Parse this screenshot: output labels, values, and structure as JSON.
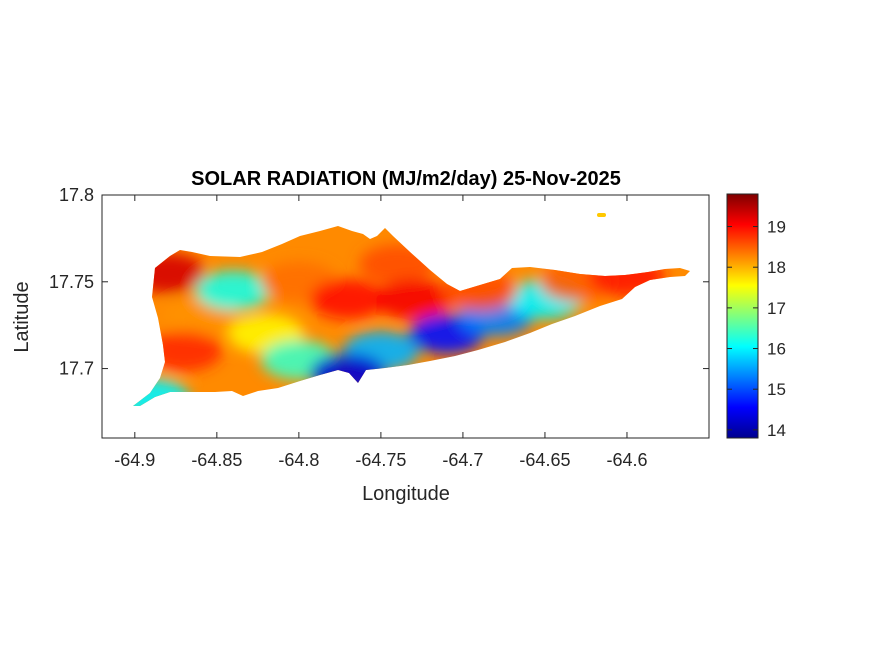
{
  "chart_data": {
    "type": "heatmap",
    "title": "SOLAR RADIATION (MJ/m2/day) 25-Nov-2025",
    "xlabel": "Longitude",
    "ylabel": "Latitude",
    "xlim": [
      -64.92,
      -64.55
    ],
    "ylim": [
      17.66,
      17.8
    ],
    "x_ticks": [
      -64.9,
      -64.85,
      -64.8,
      -64.75,
      -64.7,
      -64.65,
      -64.6
    ],
    "x_tick_labels": [
      "-64.9",
      "-64.85",
      "-64.8",
      "-64.75",
      "-64.7",
      "-64.65",
      "-64.6"
    ],
    "y_ticks": [
      17.7,
      17.75,
      17.8
    ],
    "y_tick_labels": [
      "17.7",
      "17.75",
      "17.8"
    ],
    "colorbar": {
      "colormap": "jet",
      "range": [
        13.8,
        19.8
      ],
      "ticks": [
        14,
        15,
        16,
        17,
        18,
        19
      ],
      "tick_labels": [
        "14",
        "15",
        "16",
        "17",
        "18",
        "19"
      ]
    },
    "regions": [
      {
        "lon": -64.88,
        "lat": 17.755,
        "value": 19.3
      },
      {
        "lon": -64.86,
        "lat": 17.73,
        "value": 18.2
      },
      {
        "lon": -64.87,
        "lat": 17.71,
        "value": 18.8
      },
      {
        "lon": -64.84,
        "lat": 17.745,
        "value": 16.2
      },
      {
        "lon": -64.82,
        "lat": 17.72,
        "value": 17.6
      },
      {
        "lon": -64.8,
        "lat": 17.75,
        "value": 18.4
      },
      {
        "lon": -64.8,
        "lat": 17.705,
        "value": 16.4
      },
      {
        "lon": -64.77,
        "lat": 17.74,
        "value": 19.0
      },
      {
        "lon": -64.74,
        "lat": 17.76,
        "value": 18.6
      },
      {
        "lon": -64.73,
        "lat": 17.74,
        "value": 19.1
      },
      {
        "lon": -64.75,
        "lat": 17.71,
        "value": 15.6
      },
      {
        "lon": -64.71,
        "lat": 17.72,
        "value": 14.6
      },
      {
        "lon": -64.68,
        "lat": 17.73,
        "value": 15.3
      },
      {
        "lon": -64.65,
        "lat": 17.74,
        "value": 16.0
      },
      {
        "lon": -64.69,
        "lat": 17.745,
        "value": 18.6
      },
      {
        "lon": -64.63,
        "lat": 17.75,
        "value": 18.5
      },
      {
        "lon": -64.6,
        "lat": 17.753,
        "value": 18.9
      },
      {
        "lon": -64.89,
        "lat": 17.683,
        "value": 16.0
      },
      {
        "lon": -64.77,
        "lat": 17.697,
        "value": 14.3
      }
    ]
  }
}
